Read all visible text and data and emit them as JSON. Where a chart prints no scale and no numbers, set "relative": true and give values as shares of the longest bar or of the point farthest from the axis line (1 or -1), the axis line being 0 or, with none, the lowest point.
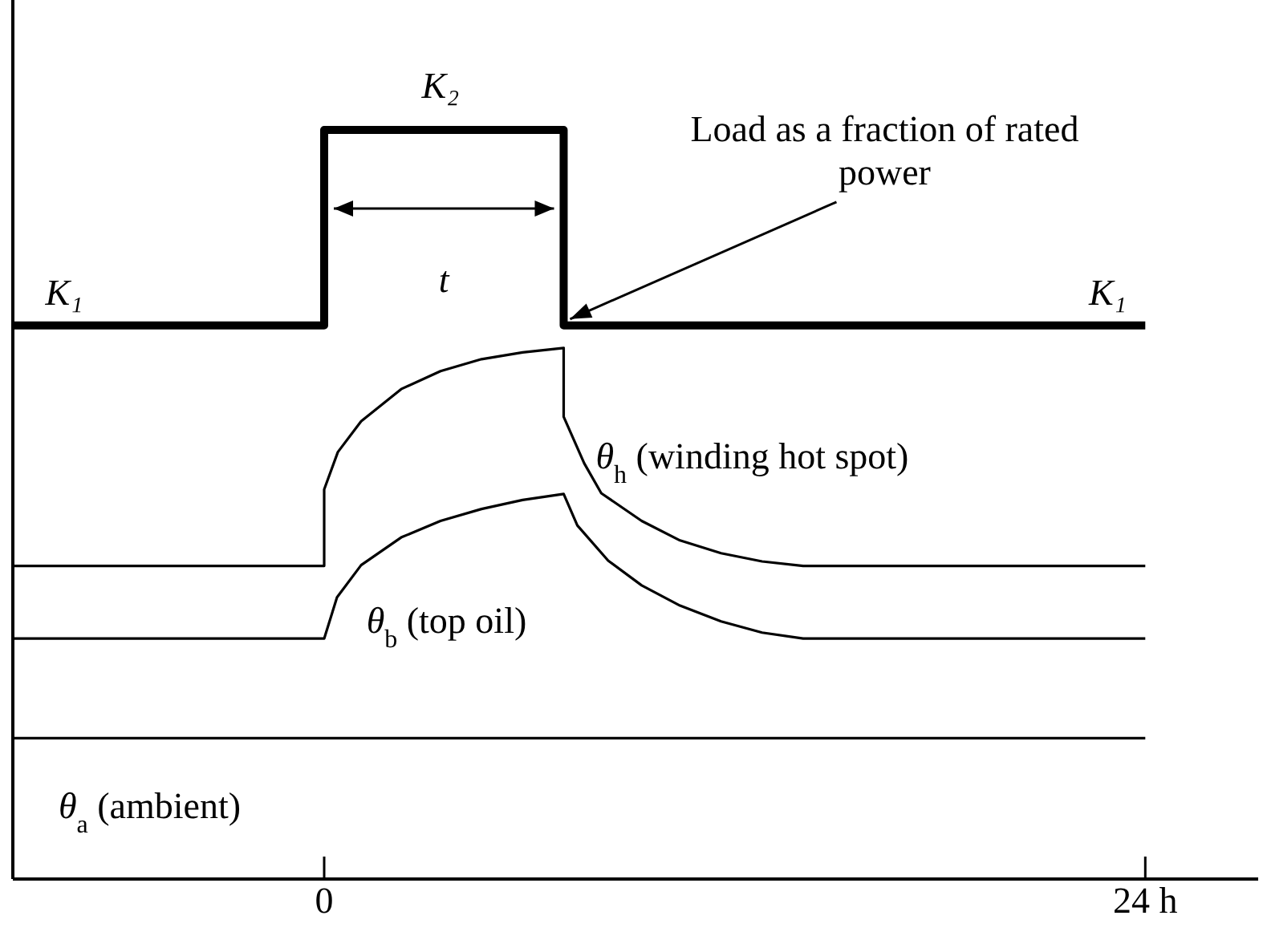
{
  "chart_data": {
    "type": "line",
    "relative": true,
    "xlim": [
      -9.1,
      27.3
    ],
    "xticks": [
      0,
      {
        "value": 24,
        "label": "24 h"
      }
    ],
    "tick_labels": "x",
    "grid": false,
    "marker": "none",
    "line_style": "solid",
    "series": [
      {
        "type": "step",
        "color": "#000000",
        "x": [
          -9.1,
          0,
          7,
          24
        ],
        "values": [
          0.739,
          1,
          0.739,
          0.739
        ]
      },
      {
        "color": "#000000",
        "x": [
          -9.1,
          0,
          0,
          0.4,
          1.08,
          2.25,
          3.4,
          4.6,
          5.8,
          7,
          7,
          7.6,
          8.1,
          9.28,
          10.4,
          11.6,
          12.8,
          14,
          24
        ],
        "values": [
          0.418,
          0.418,
          0.52,
          0.57,
          0.611,
          0.654,
          0.678,
          0.694,
          0.703,
          0.709,
          0.617,
          0.555,
          0.515,
          0.478,
          0.452,
          0.435,
          0.424,
          0.418,
          0.418
        ]
      },
      {
        "color": "#000000",
        "x": [
          -9.1,
          0,
          0.375,
          1.08,
          2.25,
          3.4,
          4.6,
          5.8,
          7,
          7.4,
          8.3,
          9.28,
          10.4,
          11.6,
          12.8,
          14,
          24
        ],
        "values": [
          0.321,
          0.321,
          0.376,
          0.419,
          0.456,
          0.478,
          0.494,
          0.506,
          0.514,
          0.472,
          0.425,
          0.392,
          0.365,
          0.344,
          0.329,
          0.321,
          0.321
        ]
      },
      {
        "color": "#000000",
        "x": [
          -9.1,
          24
        ],
        "values": [
          0.188,
          0.188
        ]
      }
    ],
    "annotations": [
      {
        "text": "K₁",
        "x": -7.6,
        "y": 0.739
      },
      {
        "text": "K₂",
        "x": 3.4,
        "y": 1
      },
      {
        "text": "K₁",
        "x": 22.9,
        "y": 0.739
      },
      "t",
      {
        "text": "Load as a fraction of rated power",
        "x": 7,
        "y": 0.739
      },
      {
        "text": "θ$_{h}$ (winding hot spot)",
        "x": 7,
        "y": 0.617
      },
      {
        "text": "θ$_{b}$  (top oil)",
        "x": 1,
        "y": 0.419
      },
      {
        "text": "θ$_{a}$  (ambient)",
        "x": -8,
        "y": 0.188
      }
    ]
  }
}
